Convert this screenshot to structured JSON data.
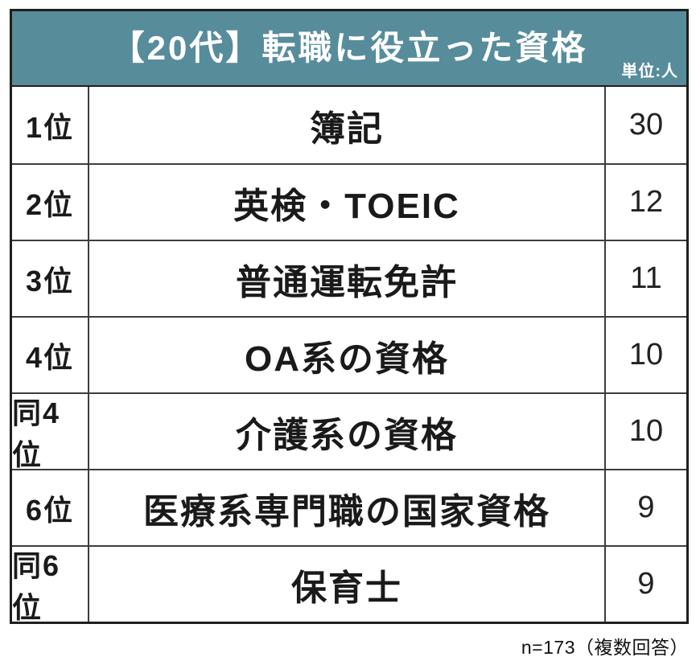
{
  "header": {
    "title": "【20代】転職に役立った資格",
    "unit_label": "単位:人"
  },
  "table": {
    "rows": [
      {
        "rank": "1位",
        "name": "簿記",
        "value": "30"
      },
      {
        "rank": "2位",
        "name": "英検・TOEIC",
        "value": "12"
      },
      {
        "rank": "3位",
        "name": "普通運転免許",
        "value": "11"
      },
      {
        "rank": "4位",
        "name": "OA系の資格",
        "value": "10"
      },
      {
        "rank": "同4位",
        "name": "介護系の資格",
        "value": "10"
      },
      {
        "rank": "6位",
        "name": "医療系専門職の国家資格",
        "value": "9"
      },
      {
        "rank": "同6位",
        "name": "保育士",
        "value": "9"
      }
    ]
  },
  "footer": {
    "note": "n=173（複数回答）"
  },
  "colors": {
    "header_bg": "#578C9B",
    "header_text": "#ffffff",
    "outer_border": "#1f1f1f",
    "inner_border": "#3d3d3d",
    "body_text": "#1a1a1a"
  },
  "chart_data": {
    "type": "table",
    "title": "【20代】転職に役立った資格",
    "unit": "人",
    "ranks": [
      "1位",
      "2位",
      "3位",
      "4位",
      "同4位",
      "6位",
      "同6位"
    ],
    "categories": [
      "簿記",
      "英検・TOEIC",
      "普通運転免許",
      "OA系の資格",
      "介護系の資格",
      "医療系専門職の国家資格",
      "保育士"
    ],
    "values": [
      30,
      12,
      11,
      10,
      10,
      9,
      9
    ],
    "note": "n=173（複数回答）",
    "layout": "header band teal with white centered title, 7 ranked rows (rank | qualification | count), footnote bottom-right"
  }
}
